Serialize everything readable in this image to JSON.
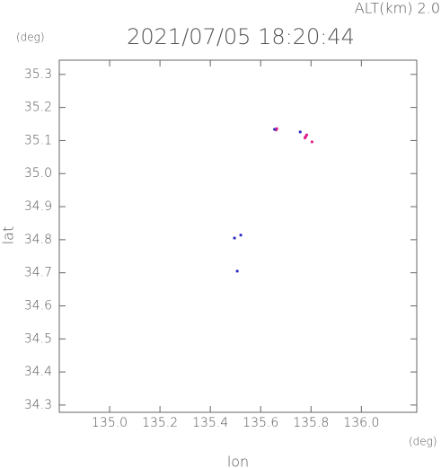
{
  "chart_data": {
    "type": "scatter",
    "title": "2021/07/05 18:20:44",
    "altitude_label": "ALT(km) 2.0",
    "y_unit": "(deg)",
    "x_unit": "(deg)",
    "xlabel": "lon",
    "ylabel": "lat",
    "xlim": [
      134.8,
      136.22
    ],
    "ylim": [
      34.278,
      35.343
    ],
    "xticks": [
      {
        "value": 135,
        "label": "135.0"
      },
      135.2,
      135.4,
      135.6,
      135.8,
      {
        "value": 136,
        "label": "136.0"
      }
    ],
    "yticks": [
      35.3,
      35.2,
      35.1,
      {
        "value": 35,
        "label": "35.0"
      },
      34.9,
      34.8,
      34.7,
      34.6,
      34.5,
      34.4,
      34.3
    ],
    "series": [
      {
        "color": "#e0208a",
        "x": [
          135.661,
          135.664,
          135.779,
          135.783,
          135.804,
          135.776
        ],
        "y": [
          35.132,
          35.136,
          35.112,
          35.117,
          35.096,
          35.108
        ]
      },
      {
        "color": "#3030c0",
        "x": [
          135.757,
          135.496,
          135.521,
          135.507,
          135.655
        ],
        "y": [
          35.126,
          34.805,
          34.814,
          34.705,
          35.134
        ]
      }
    ]
  }
}
